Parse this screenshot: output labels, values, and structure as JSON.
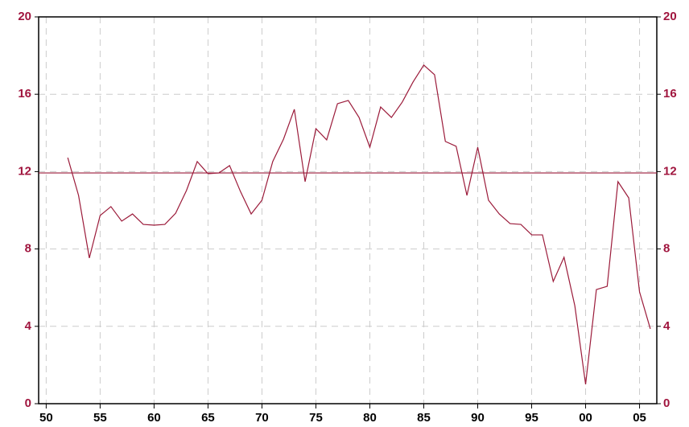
{
  "chart_data": {
    "type": "line",
    "x": [
      1952,
      1953,
      1954,
      1955,
      1956,
      1957,
      1958,
      1959,
      1960,
      1961,
      1962,
      1963,
      1964,
      1965,
      1966,
      1967,
      1968,
      1969,
      1970,
      1971,
      1972,
      1973,
      1974,
      1975,
      1976,
      1977,
      1978,
      1979,
      1980,
      1981,
      1982,
      1983,
      1984,
      1985,
      1986,
      1987,
      1988,
      1989,
      1990,
      1991,
      1992,
      1993,
      1994,
      1995,
      1996,
      1997,
      1998,
      1999,
      2000,
      2001,
      2002,
      2003,
      2004,
      2005,
      2006
    ],
    "series": [
      {
        "color": "#9b1b3a",
        "values": [
          12.72,
          10.77,
          7.53,
          9.73,
          10.19,
          9.44,
          9.81,
          9.27,
          9.23,
          9.27,
          9.85,
          11.02,
          12.52,
          11.89,
          11.93,
          12.31,
          10.98,
          9.81,
          10.52,
          12.52,
          13.68,
          15.22,
          11.48,
          14.22,
          13.64,
          15.51,
          15.68,
          14.8,
          13.26,
          15.34,
          14.8,
          15.59,
          16.63,
          17.51,
          17.01,
          13.56,
          13.31,
          10.77,
          13.26,
          10.52,
          9.81,
          9.31,
          9.27,
          8.73,
          8.73,
          6.32,
          7.57,
          5.07,
          1.0,
          5.9,
          6.07,
          11.48,
          10.64,
          5.78,
          3.87
        ]
      }
    ],
    "reference_line": 11.93,
    "xlim": [
      1949.3,
      2006.6
    ],
    "xticks": [
      {
        "value": 1950,
        "label": "50"
      },
      {
        "value": 1955,
        "label": "55"
      },
      {
        "value": 1960,
        "label": "60"
      },
      {
        "value": 1965,
        "label": "65"
      },
      {
        "value": 1970,
        "label": "70"
      },
      {
        "value": 1975,
        "label": "75"
      },
      {
        "value": 1980,
        "label": "80"
      },
      {
        "value": 1985,
        "label": "85"
      },
      {
        "value": 1990,
        "label": "90"
      },
      {
        "value": 1995,
        "label": "95"
      },
      {
        "value": 2000,
        "label": "00"
      },
      {
        "value": 2005,
        "label": "05"
      }
    ],
    "ylim": [
      0,
      20
    ],
    "yticks": [
      0,
      4,
      8,
      12,
      16,
      20
    ],
    "y2lim": [
      0,
      20
    ],
    "y2ticks": [
      0,
      4,
      8,
      12,
      16,
      20
    ],
    "grid": true,
    "tick_color": "#a0153e"
  }
}
